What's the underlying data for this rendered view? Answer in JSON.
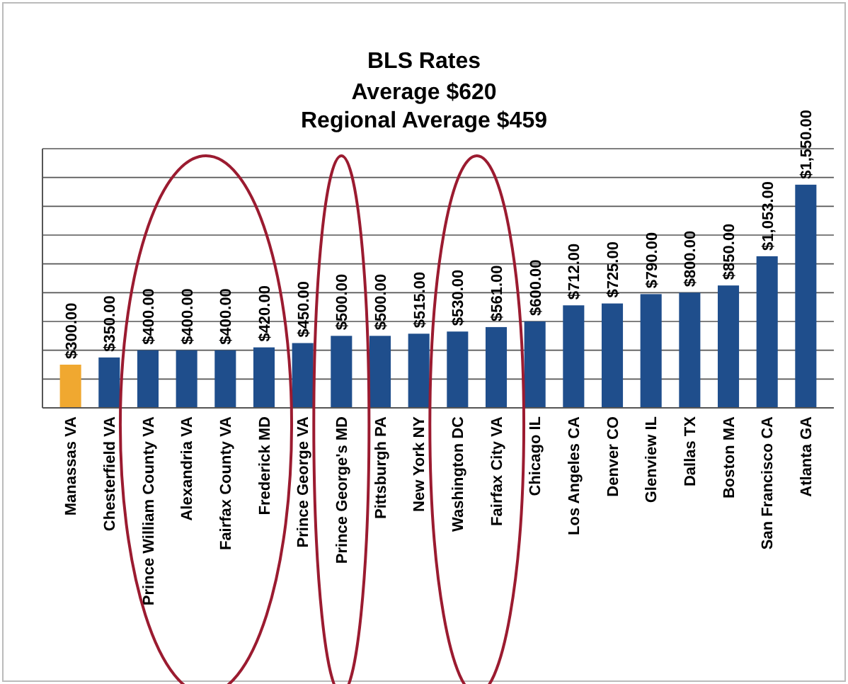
{
  "chart_data": {
    "type": "bar",
    "title": "BLS Rates",
    "subtitle": "Average $620",
    "annotations": [
      "Regional Average $459"
    ],
    "categories": [
      "Manassas VA",
      "Chesterfield VA",
      "Prince William County VA",
      "Alexandria VA",
      "Fairfax County VA",
      "Frederick MD",
      "Prince George VA",
      "Prince George's MD",
      "Pittsburgh PA",
      "New York NY",
      "Washington DC",
      "Fairfax City VA",
      "Chicago IL",
      "Los Angeles CA",
      "Denver CO",
      "Glenview IL",
      "Dallas TX",
      "Boston MA",
      "San Francisco CA",
      "Atlanta GA"
    ],
    "values": [
      300,
      350,
      400,
      400,
      400,
      420,
      450,
      500,
      500,
      515,
      530,
      561,
      600,
      712,
      725,
      790,
      800,
      850,
      1053,
      1550
    ],
    "value_labels": [
      "$300.00",
      "$350.00",
      "$400.00",
      "$400.00",
      "$400.00",
      "$420.00",
      "$450.00",
      "$500.00",
      "$500.00",
      "$515.00",
      "$530.00",
      "$561.00",
      "$600.00",
      "$712.00",
      "$725.00",
      "$790.00",
      "$800.00",
      "$850.00",
      "$1,053.00",
      "$1,550.00"
    ],
    "colors": [
      "#f0a830",
      "#1f4e8c",
      "#1f4e8c",
      "#1f4e8c",
      "#1f4e8c",
      "#1f4e8c",
      "#1f4e8c",
      "#1f4e8c",
      "#1f4e8c",
      "#1f4e8c",
      "#1f4e8c",
      "#1f4e8c",
      "#1f4e8c",
      "#1f4e8c",
      "#1f4e8c",
      "#1f4e8c",
      "#1f4e8c",
      "#1f4e8c",
      "#1f4e8c",
      "#1f4e8c"
    ],
    "ylim": [
      0,
      1800
    ],
    "yticks": [
      {
        "value": 0,
        "label": null
      },
      {
        "value": 200,
        "label": null
      },
      {
        "value": 400,
        "label": null
      },
      {
        "value": 600,
        "label": null
      },
      {
        "value": 800,
        "label": null
      },
      {
        "value": 1000,
        "label": null
      },
      {
        "value": 1200,
        "label": null
      },
      {
        "value": 1400,
        "label": null
      },
      {
        "value": 1600,
        "label": null
      },
      {
        "value": 1800,
        "label": null
      }
    ],
    "grid": "y"
  }
}
